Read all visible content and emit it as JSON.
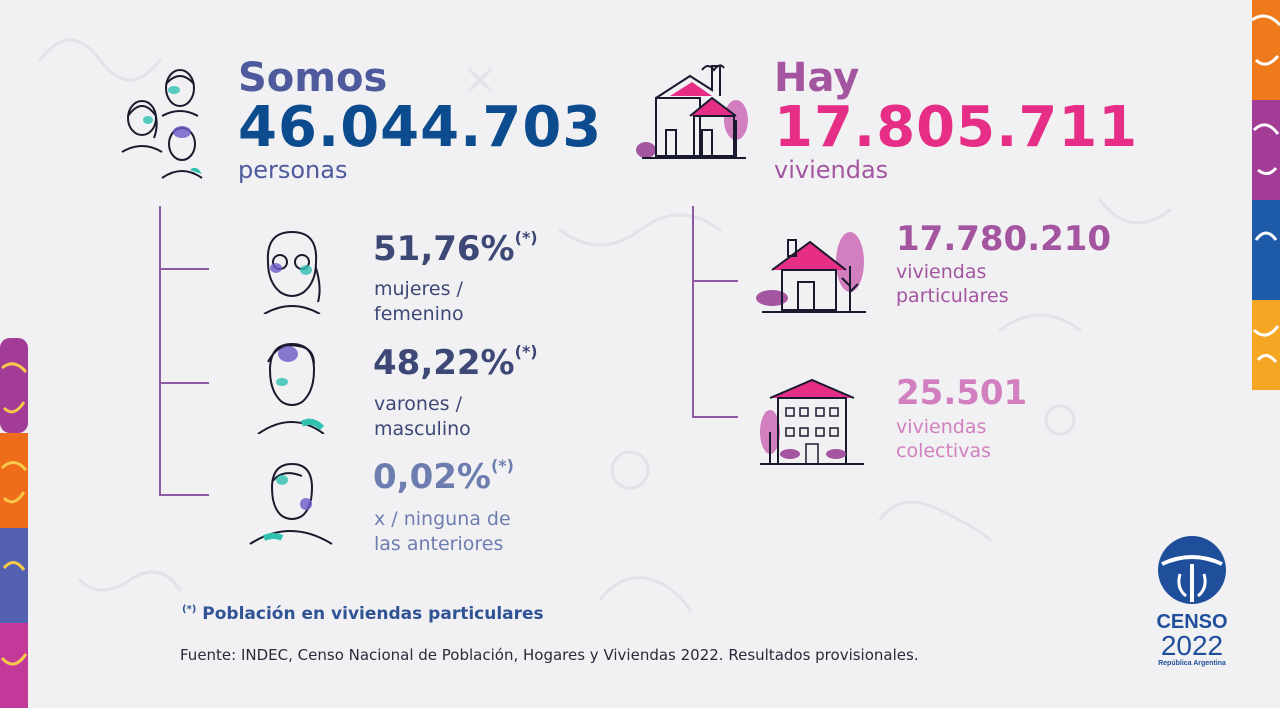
{
  "population": {
    "intro": "Somos",
    "total": "46.044.703",
    "unit": "personas",
    "breakdown": [
      {
        "percent": "51,76%",
        "mark": "(*)",
        "line1": "mujeres /",
        "line2": "femenino"
      },
      {
        "percent": "48,22%",
        "mark": "(*)",
        "line1": "varones /",
        "line2": "masculino"
      },
      {
        "percent": "0,02%",
        "mark": "(*)",
        "line1": "x / ninguna de",
        "line2": "las anteriores"
      }
    ]
  },
  "housing": {
    "intro": "Hay",
    "total": "17.805.711",
    "unit": "viviendas",
    "breakdown": [
      {
        "value": "17.780.210",
        "line1": "viviendas",
        "line2": "particulares"
      },
      {
        "value": "25.501",
        "line1": "viviendas",
        "line2": "colectivas"
      }
    ]
  },
  "footnote": {
    "mark": "(*)",
    "text": "Población en viviendas particulares"
  },
  "source": "Fuente: INDEC, Censo Nacional de Población, Hogares y Viviendas 2022. Resultados provisionales.",
  "logo": {
    "word": "CENSO",
    "year": "2022",
    "country": "República Argentina"
  },
  "icons": [
    "people-group-icon",
    "woman-icon",
    "man-icon",
    "person-x-icon",
    "houses-icon",
    "house-icon",
    "building-icon",
    "censo-logo-icon"
  ],
  "colors": {
    "blue_dark": "#0d4b8f",
    "blue_mid": "#4e5a9c",
    "pink": "#e72e86",
    "purple": "#a4559f",
    "teal": "#2fc0b0"
  }
}
